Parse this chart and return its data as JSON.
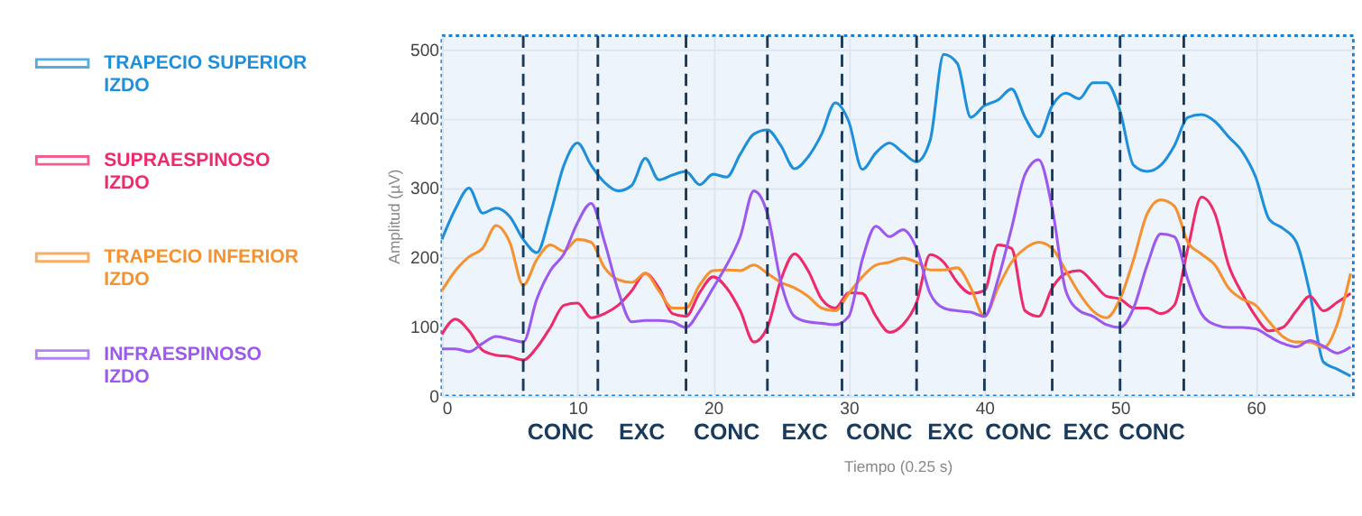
{
  "chart_data": {
    "type": "line",
    "xlabel": "Tiempo (0.25 s)",
    "ylabel": "Amplitud (µV)",
    "x": [
      0,
      1,
      2,
      3,
      4,
      5,
      6,
      7,
      8,
      9,
      10,
      11,
      12,
      13,
      14,
      15,
      16,
      17,
      18,
      19,
      20,
      21,
      22,
      23,
      24,
      25,
      26,
      27,
      28,
      29,
      30,
      31,
      32,
      33,
      34,
      35,
      36,
      37,
      38,
      39,
      40,
      41,
      42,
      43,
      44,
      45,
      46,
      47,
      48,
      49,
      50,
      51,
      52,
      53,
      54,
      55,
      56,
      57,
      58,
      59,
      60,
      61,
      62,
      63,
      64,
      65,
      66,
      67
    ],
    "series": [
      {
        "name": "TRAPECIO SUPERIOR IZDO",
        "color": "#1e90db",
        "values": [
          226,
          270,
          300,
          264,
          271,
          259,
          226,
          207,
          263,
          333,
          365,
          333,
          308,
          296,
          304,
          343,
          312,
          319,
          324,
          305,
          320,
          316,
          349,
          378,
          384,
          361,
          328,
          345,
          378,
          423,
          396,
          327,
          351,
          365,
          351,
          338,
          369,
          493,
          480,
          402,
          419,
          427,
          443,
          402,
          374,
          419,
          437,
          429,
          452,
          452,
          411,
          333,
          324,
          333,
          361,
          402,
          406,
          396,
          374,
          353,
          316,
          255,
          242,
          222,
          148,
          49,
          39,
          29
        ]
      },
      {
        "name": "SUPRAESPINOSO IZDO",
        "color": "#ee2a6a",
        "values": [
          89,
          111,
          94,
          66,
          59,
          57,
          52,
          70,
          99,
          131,
          134,
          113,
          119,
          131,
          152,
          177,
          156,
          119,
          115,
          149,
          172,
          156,
          123,
          78,
          99,
          168,
          205,
          181,
          140,
          127,
          149,
          148,
          115,
          92,
          103,
          135,
          204,
          193,
          164,
          148,
          152,
          218,
          213,
          123,
          115,
          156,
          177,
          181,
          164,
          144,
          140,
          127,
          127,
          119,
          131,
          213,
          287,
          263,
          189,
          148,
          115,
          94,
          99,
          123,
          144,
          123,
          135,
          148
        ]
      },
      {
        "name": "TRAPECIO INFERIOR IZDO",
        "color": "#f5922f",
        "values": [
          152,
          181,
          201,
          213,
          246,
          222,
          160,
          197,
          218,
          209,
          226,
          222,
          185,
          168,
          164,
          177,
          152,
          127,
          127,
          160,
          181,
          182,
          181,
          189,
          177,
          164,
          156,
          144,
          127,
          123,
          148,
          172,
          189,
          193,
          199,
          193,
          182,
          182,
          185,
          156,
          115,
          156,
          193,
          213,
          222,
          213,
          181,
          148,
          123,
          113,
          140,
          197,
          263,
          283,
          274,
          222,
          205,
          189,
          156,
          140,
          131,
          107,
          86,
          78,
          78,
          70,
          103,
          177
        ]
      },
      {
        "name": "INFRAESPINOSO IZDO",
        "color": "#9b59f0",
        "values": [
          68,
          68,
          64,
          76,
          86,
          82,
          78,
          140,
          181,
          205,
          250,
          278,
          222,
          152,
          107,
          109,
          109,
          107,
          99,
          123,
          156,
          189,
          230,
          296,
          263,
          164,
          115,
          107,
          105,
          103,
          115,
          197,
          245,
          230,
          240,
          213,
          148,
          127,
          123,
          121,
          115,
          168,
          242,
          320,
          341,
          271,
          152,
          123,
          115,
          103,
          99,
          127,
          189,
          234,
          230,
          168,
          119,
          103,
          99,
          99,
          97,
          86,
          76,
          71,
          80,
          72,
          62,
          71
        ]
      }
    ],
    "xlim": [
      0,
      67.2
    ],
    "ylim": [
      0,
      520
    ],
    "xticks": [
      0,
      10,
      20,
      30,
      40,
      50,
      60
    ],
    "yticks": [
      0,
      100,
      200,
      300,
      400,
      500
    ],
    "grid": true,
    "legend": "left",
    "marker": "none",
    "line_style": "solid",
    "ref_lines": [
      {
        "axis": "x",
        "value": 6,
        "color": "#1a3a5c",
        "line_style": "dashed"
      },
      {
        "axis": "x",
        "value": 11.5,
        "color": "#1a3a5c",
        "line_style": "dashed"
      },
      {
        "axis": "x",
        "value": 18,
        "color": "#1a3a5c",
        "line_style": "dashed"
      },
      {
        "axis": "x",
        "value": 24,
        "color": "#1a3a5c",
        "line_style": "dashed"
      },
      {
        "axis": "x",
        "value": 29.5,
        "color": "#1a3a5c",
        "line_style": "dashed"
      },
      {
        "axis": "x",
        "value": 35,
        "color": "#1a3a5c",
        "line_style": "dashed"
      },
      {
        "axis": "x",
        "value": 40,
        "color": "#1a3a5c",
        "line_style": "dashed"
      },
      {
        "axis": "x",
        "value": 45,
        "color": "#1a3a5c",
        "line_style": "dashed"
      },
      {
        "axis": "x",
        "value": 50,
        "color": "#1a3a5c",
        "line_style": "dashed"
      },
      {
        "axis": "x",
        "value": 54.7,
        "color": "#1a3a5c",
        "line_style": "dashed"
      }
    ],
    "annotations": [
      "CONC",
      "EXC",
      "CONC",
      "EXC",
      "CONC",
      "EXC",
      "CONC",
      "EXC",
      "CONC"
    ]
  }
}
